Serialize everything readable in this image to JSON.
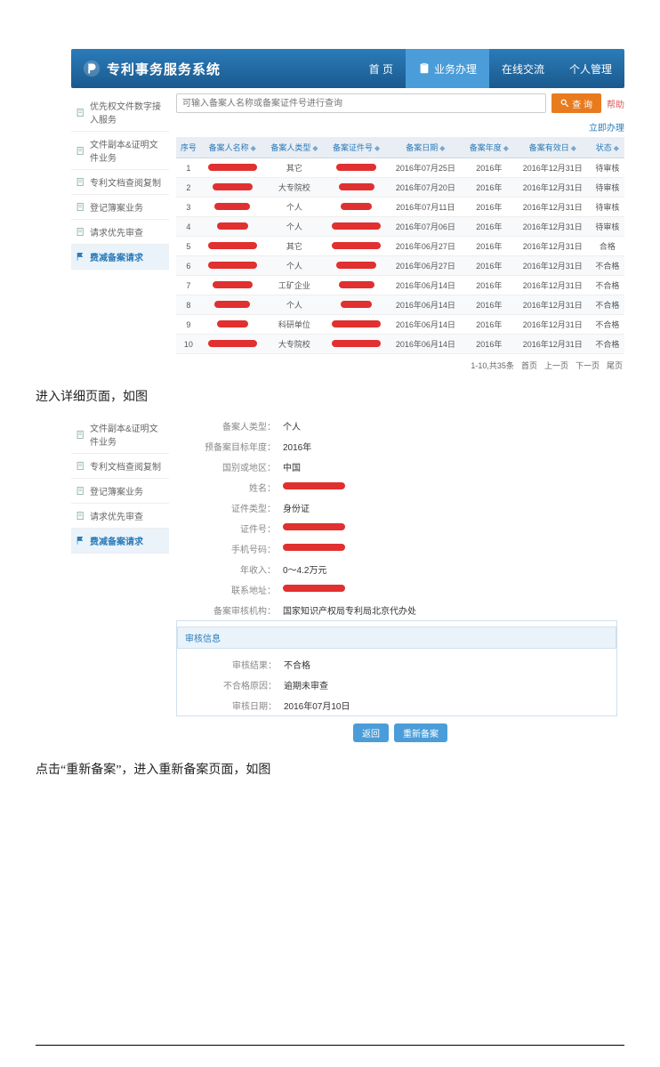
{
  "header": {
    "system_title": "专利事务服务系统",
    "nav": [
      {
        "label": "首 页",
        "active": false
      },
      {
        "label": "业务办理",
        "active": true
      },
      {
        "label": "在线交流",
        "active": false
      },
      {
        "label": "个人管理",
        "active": false
      }
    ]
  },
  "sidebar1": [
    {
      "label": "优先权文件数字接入服务",
      "icon": "doc",
      "active": false
    },
    {
      "label": "文件副本&证明文件业务",
      "icon": "doc",
      "active": false
    },
    {
      "label": "专利文档查阅复制",
      "icon": "doc",
      "active": false
    },
    {
      "label": "登记簿案业务",
      "icon": "doc",
      "active": false
    },
    {
      "label": "请求优先审查",
      "icon": "doc",
      "active": false
    },
    {
      "label": "费减备案请求",
      "icon": "flag",
      "active": true
    }
  ],
  "search": {
    "placeholder": "可输入备案人名称或备案证件号进行查询",
    "button": "查 询",
    "help": "帮助",
    "export": "立即办理"
  },
  "table": {
    "columns": [
      "序号",
      "备案人名称",
      "备案人类型",
      "备案证件号",
      "备案日期",
      "备案年度",
      "备案有效日",
      "状态"
    ],
    "rows": [
      {
        "idx": 1,
        "type": "其它",
        "date": "2016年07月25日",
        "year": "2016年",
        "valid": "2016年12月31日",
        "status": "待审核"
      },
      {
        "idx": 2,
        "type": "大专院校",
        "date": "2016年07月20日",
        "year": "2016年",
        "valid": "2016年12月31日",
        "status": "待审核"
      },
      {
        "idx": 3,
        "type": "个人",
        "date": "2016年07月11日",
        "year": "2016年",
        "valid": "2016年12月31日",
        "status": "待审核"
      },
      {
        "idx": 4,
        "type": "个人",
        "date": "2016年07月06日",
        "year": "2016年",
        "valid": "2016年12月31日",
        "status": "待审核"
      },
      {
        "idx": 5,
        "type": "其它",
        "date": "2016年06月27日",
        "year": "2016年",
        "valid": "2016年12月31日",
        "status": "合格"
      },
      {
        "idx": 6,
        "type": "个人",
        "date": "2016年06月27日",
        "year": "2016年",
        "valid": "2016年12月31日",
        "status": "不合格"
      },
      {
        "idx": 7,
        "type": "工矿企业",
        "date": "2016年06月14日",
        "year": "2016年",
        "valid": "2016年12月31日",
        "status": "不合格"
      },
      {
        "idx": 8,
        "type": "个人",
        "date": "2016年06月14日",
        "year": "2016年",
        "valid": "2016年12月31日",
        "status": "不合格"
      },
      {
        "idx": 9,
        "type": "科研单位",
        "date": "2016年06月14日",
        "year": "2016年",
        "valid": "2016年12月31日",
        "status": "不合格"
      },
      {
        "idx": 10,
        "type": "大专院校",
        "date": "2016年06月14日",
        "year": "2016年",
        "valid": "2016年12月31日",
        "status": "不合格"
      }
    ],
    "pager": {
      "range": "1-10,共35条",
      "first": "首页",
      "prev": "上一页",
      "next": "下一页",
      "last": "尾页"
    }
  },
  "caption1": "进入详细页面，如图",
  "sidebar2": [
    {
      "label": "文件副本&证明文件业务",
      "icon": "doc",
      "active": false
    },
    {
      "label": "专利文档查阅复制",
      "icon": "doc",
      "active": false
    },
    {
      "label": "登记簿案业务",
      "icon": "doc",
      "active": false
    },
    {
      "label": "请求优先审查",
      "icon": "doc",
      "active": false
    },
    {
      "label": "费减备案请求",
      "icon": "flag",
      "active": true
    }
  ],
  "detail": {
    "fields": [
      {
        "label": "备案人类型：",
        "value": "个人"
      },
      {
        "label": "预备案目标年度：",
        "value": "2016年"
      },
      {
        "label": "国别或地区：",
        "value": "中国"
      },
      {
        "label": "姓名：",
        "value": "__redact__"
      },
      {
        "label": "证件类型：",
        "value": "身份证"
      },
      {
        "label": "证件号：",
        "value": "__redact__"
      },
      {
        "label": "手机号码：",
        "value": "__redact__"
      },
      {
        "label": "年收入：",
        "value": "0～4.2万元"
      },
      {
        "label": "联系地址：",
        "value": "__redact__"
      },
      {
        "label": "备案审核机构：",
        "value": "国家知识产权局专利局北京代办处"
      }
    ],
    "section": "审核信息",
    "audit": [
      {
        "label": "审核结果：",
        "value": "不合格"
      },
      {
        "label": "不合格原因：",
        "value": "逾期未审查"
      },
      {
        "label": "审核日期：",
        "value": "2016年07月10日"
      }
    ],
    "buttons": {
      "back": "返回",
      "redo": "重新备案"
    }
  },
  "caption2": "点击“重新备案”，进入重新备案页面，如图",
  "colors": {
    "header_grad_top": "#2b7bb9",
    "header_grad_bot": "#1a5a8e",
    "active_tab": "#4a9dd8",
    "accent": "#2b7bb9",
    "orange": "#e87b1e",
    "red": "#e03030"
  }
}
